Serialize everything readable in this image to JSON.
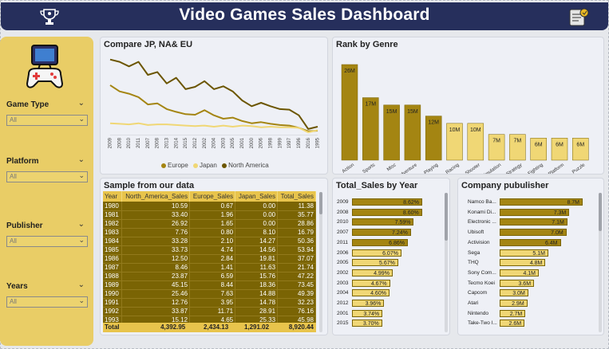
{
  "header": {
    "title": "Video Games Sales Dashboard"
  },
  "icons": {
    "logo": "trophy-icon",
    "scroll": "scroll-icon",
    "gamepad": "game-controller-icon"
  },
  "colors": {
    "header": "#262f5c",
    "sidebar": "#e9cd66",
    "dark_gold": "#7a6404",
    "gold": "#a48512",
    "light_gold": "#e8cc74"
  },
  "slicers": [
    {
      "label": "Game Type",
      "value": "All"
    },
    {
      "label": "Platform",
      "value": "All"
    },
    {
      "label": "Publisher",
      "value": "All"
    },
    {
      "label": "Years",
      "value": "All"
    }
  ],
  "line_panel": {
    "title": "Compare JP, NA& EU"
  },
  "genre_panel": {
    "title": "Rank by Genre"
  },
  "table_panel": {
    "title": "Sample from our data"
  },
  "year_panel": {
    "title": "Total_Sales by Year"
  },
  "company_panel": {
    "title": "Company pubulisher"
  },
  "chart_data": [
    {
      "type": "line",
      "title": "Compare JP, NA& EU",
      "x": [
        "2009",
        "2008",
        "2010",
        "2011",
        "2007",
        "2008",
        "2013",
        "2014",
        "2015",
        "2012",
        "2002",
        "2004",
        "2003",
        "2005",
        "2001",
        "2000",
        "2006",
        "1998",
        "1999",
        "1997",
        "1996",
        "2016",
        "1995"
      ],
      "series": [
        {
          "name": "Europe",
          "color": "#a48512",
          "values": [
            87,
            76,
            72,
            66,
            53,
            55,
            45,
            40,
            36,
            35,
            43,
            34,
            28,
            30,
            24,
            20,
            22,
            19,
            17,
            16,
            12,
            6,
            7
          ]
        },
        {
          "name": "Japan",
          "color": "#f0d775",
          "values": [
            20,
            19,
            18,
            20,
            17,
            18,
            18,
            17,
            16,
            15,
            16,
            14,
            16,
            14,
            16,
            15,
            13,
            14,
            13,
            13,
            12,
            4,
            8
          ]
        },
        {
          "name": "North America",
          "color": "#6b5500",
          "values": [
            132,
            128,
            120,
            128,
            105,
            110,
            90,
            100,
            80,
            84,
            94,
            80,
            85,
            76,
            60,
            50,
            56,
            50,
            45,
            44,
            34,
            10,
            14
          ]
        }
      ],
      "legend": "bottom",
      "grid": false
    },
    {
      "type": "bar",
      "title": "Rank by Genre",
      "categories": [
        "Action",
        "Sports",
        "Misc",
        "Adventure",
        "Role-Playing",
        "Racing",
        "Shooter",
        "Simulation",
        "Strategy",
        "Fighting",
        "Platform",
        "Puzzle"
      ],
      "values": [
        26,
        17,
        15,
        15,
        12,
        10,
        10,
        7,
        7,
        6,
        6,
        6
      ],
      "labels": [
        "26M",
        "17M",
        "15M",
        "15M",
        "12M",
        "10M",
        "10M",
        "7M",
        "7M",
        "6M",
        "6M",
        "6M"
      ],
      "colors": [
        "#a48512",
        "#a48512",
        "#a48512",
        "#a48512",
        "#a48512",
        "#f0d775",
        "#f0d775",
        "#f0d775",
        "#f0d775",
        "#f0d775",
        "#f0d775",
        "#f0d775"
      ]
    },
    {
      "type": "table",
      "title": "Sample from our data",
      "columns": [
        "Year",
        "North_America_Sales",
        "Europe_Sales",
        "Japan_Sales",
        "Total_Sales"
      ],
      "rows": [
        [
          "1980",
          "10.59",
          "0.67",
          "0.00",
          "11.38"
        ],
        [
          "1981",
          "33.40",
          "1.96",
          "0.00",
          "35.77"
        ],
        [
          "1982",
          "26.92",
          "1.65",
          "0.00",
          "28.86"
        ],
        [
          "1983",
          "7.76",
          "0.80",
          "8.10",
          "16.79"
        ],
        [
          "1984",
          "33.28",
          "2.10",
          "14.27",
          "50.36"
        ],
        [
          "1985",
          "33.73",
          "4.74",
          "14.56",
          "53.94"
        ],
        [
          "1986",
          "12.50",
          "2.84",
          "19.81",
          "37.07"
        ],
        [
          "1987",
          "8.46",
          "1.41",
          "11.63",
          "21.74"
        ],
        [
          "1988",
          "23.87",
          "6.59",
          "15.76",
          "47.22"
        ],
        [
          "1989",
          "45.15",
          "8.44",
          "18.36",
          "73.45"
        ],
        [
          "1990",
          "25.46",
          "7.63",
          "14.88",
          "49.39"
        ],
        [
          "1991",
          "12.76",
          "3.95",
          "14.78",
          "32.23"
        ],
        [
          "1992",
          "33.87",
          "11.71",
          "28.91",
          "76.16"
        ],
        [
          "1993",
          "15.12",
          "4.65",
          "25.33",
          "45.98"
        ]
      ],
      "total": [
        "Total",
        "4,392.95",
        "2,434.13",
        "1,291.02",
        "8,920.44"
      ]
    },
    {
      "type": "bar",
      "orientation": "horizontal",
      "title": "Total_Sales by Year",
      "categories": [
        "2009",
        "2008",
        "2010",
        "2007",
        "2011",
        "2006",
        "2005",
        "2002",
        "2003",
        "2004",
        "2012",
        "2001",
        "2015"
      ],
      "values": [
        8.62,
        8.6,
        7.59,
        7.24,
        6.86,
        6.07,
        5.67,
        4.99,
        4.67,
        4.6,
        3.96,
        3.74,
        3.7
      ],
      "labels": [
        "8.62%",
        "8.60%",
        "7.59%",
        "7.24%",
        "6.86%",
        "6.07%",
        "5.67%",
        "4.99%",
        "4.67%",
        "4.60%",
        "3.96%",
        "3.74%",
        "3.70%"
      ],
      "colors": [
        "#a48512",
        "#a48512",
        "#a48512",
        "#a48512",
        "#a48512",
        "#f0d775",
        "#f0d775",
        "#f0d775",
        "#f0d775",
        "#f0d775",
        "#f0d775",
        "#f0d775",
        "#f0d775"
      ]
    },
    {
      "type": "bar",
      "orientation": "horizontal",
      "title": "Company pubulisher",
      "categories": [
        "Namco Ba...",
        "Konami Di...",
        "Electronic ...",
        "Ubisoft",
        "Activision",
        "Sega",
        "THQ",
        "Sony Com...",
        "Tecmo Koei",
        "Capcom",
        "Atari",
        "Nintendo",
        "Take-Two I..."
      ],
      "values": [
        8.7,
        7.3,
        7.1,
        7.0,
        6.4,
        5.1,
        4.8,
        4.1,
        3.6,
        3.0,
        2.9,
        2.7,
        2.6
      ],
      "labels": [
        "8.7M",
        "7.3M",
        "7.1M",
        "7.0M",
        "6.4M",
        "5.1M",
        "4.8M",
        "4.1M",
        "3.6M",
        "3.0M",
        "2.9M",
        "2.7M",
        "2.6M"
      ],
      "colors": [
        "#a48512",
        "#a48512",
        "#a48512",
        "#a48512",
        "#a48512",
        "#f0d775",
        "#f0d775",
        "#f0d775",
        "#f0d775",
        "#f0d775",
        "#f0d775",
        "#f0d775",
        "#f0d775"
      ]
    }
  ]
}
